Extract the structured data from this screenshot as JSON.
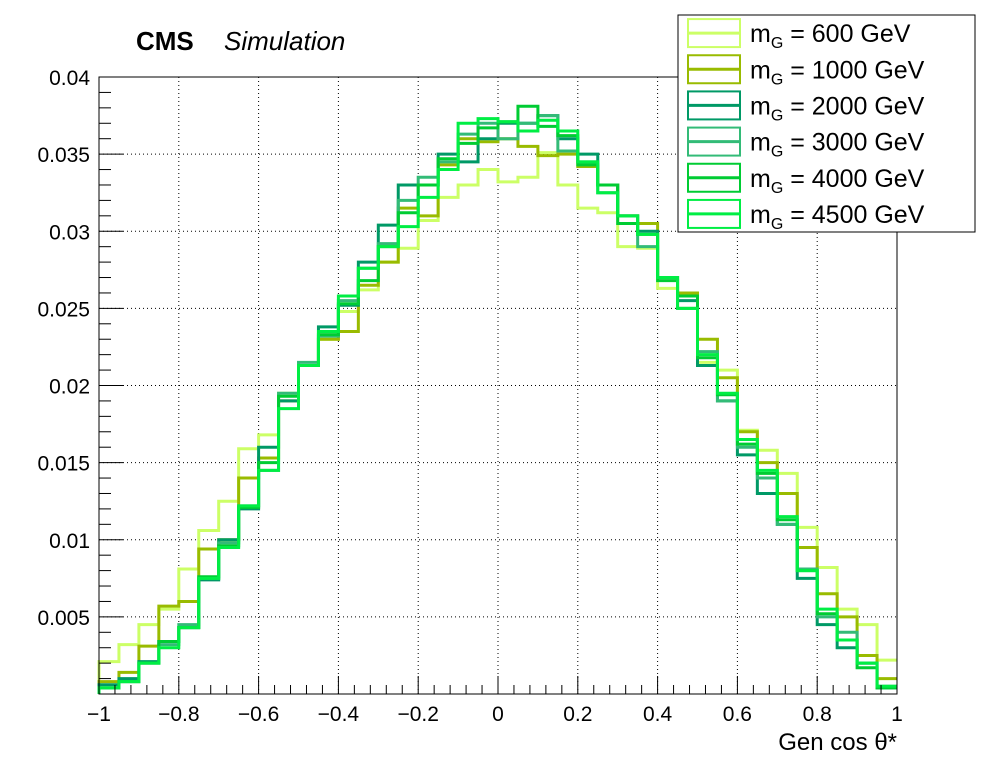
{
  "header": {
    "experiment": "CMS",
    "qualifier": "Simulation"
  },
  "chart_data": {
    "type": "line",
    "style": "step-histogram",
    "xlabel": "Gen cos θ*",
    "ylabel": "",
    "xlim": [
      -1,
      1
    ],
    "ylim": [
      0,
      0.04
    ],
    "grid": true,
    "legend_position": "top-right",
    "x_ticks": [
      "−1",
      "−0.8",
      "−0.6",
      "−0.4",
      "−0.2",
      "0",
      "0.2",
      "0.4",
      "0.6",
      "0.8",
      "1"
    ],
    "y_ticks": [
      "0.005",
      "0.01",
      "0.015",
      "0.02",
      "0.025",
      "0.03",
      "0.035",
      "0.04"
    ],
    "x_tick_values": [
      -1,
      -0.8,
      -0.6,
      -0.4,
      -0.2,
      0,
      0.2,
      0.4,
      0.6,
      0.8,
      1
    ],
    "y_tick_values": [
      0.005,
      0.01,
      0.015,
      0.02,
      0.025,
      0.03,
      0.035,
      0.04
    ],
    "bin_edges": [
      -1,
      -0.95,
      -0.9,
      -0.85,
      -0.8,
      -0.75,
      -0.7,
      -0.65,
      -0.6,
      -0.55,
      -0.5,
      -0.45,
      -0.4,
      -0.35,
      -0.3,
      -0.25,
      -0.2,
      -0.15,
      -0.1,
      -0.05,
      0,
      0.05,
      0.1,
      0.15,
      0.2,
      0.25,
      0.3,
      0.35,
      0.4,
      0.45,
      0.5,
      0.55,
      0.6,
      0.65,
      0.7,
      0.75,
      0.8,
      0.85,
      0.9,
      0.95,
      1
    ],
    "series": [
      {
        "legend_prefix": "m",
        "legend_sub": "G",
        "legend_suffix": " = 600 GeV",
        "color": "#ccff66",
        "values": [
          0.0021,
          0.0032,
          0.0045,
          0.0055,
          0.0081,
          0.0106,
          0.0125,
          0.0159,
          0.0168,
          0.0195,
          0.0213,
          0.023,
          0.0248,
          0.0262,
          0.028,
          0.0289,
          0.0307,
          0.0322,
          0.033,
          0.034,
          0.0332,
          0.0335,
          0.0351,
          0.033,
          0.0315,
          0.0312,
          0.029,
          0.0289,
          0.0263,
          0.025,
          0.0215,
          0.021,
          0.0171,
          0.0158,
          0.0143,
          0.0108,
          0.0082,
          0.0055,
          0.0045,
          0.0022
        ]
      },
      {
        "legend_prefix": "m",
        "legend_sub": "G",
        "legend_suffix": " = 1000 GeV",
        "color": "#99bb00",
        "values": [
          0.0008,
          0.0014,
          0.0031,
          0.0057,
          0.006,
          0.0094,
          0.01,
          0.014,
          0.0153,
          0.019,
          0.0213,
          0.023,
          0.0235,
          0.0265,
          0.028,
          0.0315,
          0.031,
          0.0343,
          0.036,
          0.0358,
          0.036,
          0.0355,
          0.0349,
          0.035,
          0.0342,
          0.033,
          0.031,
          0.0305,
          0.027,
          0.026,
          0.023,
          0.0205,
          0.017,
          0.015,
          0.013,
          0.0095,
          0.0065,
          0.005,
          0.0025,
          0.001
        ]
      },
      {
        "legend_prefix": "m",
        "legend_sub": "G",
        "legend_suffix": " = 2000 GeV",
        "color": "#009966",
        "values": [
          0.0006,
          0.001,
          0.0021,
          0.0034,
          0.0043,
          0.0074,
          0.01,
          0.012,
          0.016,
          0.019,
          0.0213,
          0.0238,
          0.0252,
          0.028,
          0.0304,
          0.033,
          0.033,
          0.035,
          0.0345,
          0.036,
          0.037,
          0.037,
          0.0375,
          0.036,
          0.035,
          0.033,
          0.031,
          0.03,
          0.027,
          0.0255,
          0.0213,
          0.019,
          0.0155,
          0.013,
          0.011,
          0.0075,
          0.0045,
          0.003,
          0.002,
          0.0004
        ]
      },
      {
        "legend_prefix": "m",
        "legend_sub": "G",
        "legend_suffix": " = 3000 GeV",
        "color": "#33bb77",
        "values": [
          0.0004,
          0.0008,
          0.002,
          0.0032,
          0.0045,
          0.0075,
          0.0098,
          0.0122,
          0.0145,
          0.0195,
          0.0215,
          0.0232,
          0.0255,
          0.0276,
          0.0292,
          0.032,
          0.0335,
          0.0345,
          0.0363,
          0.037,
          0.036,
          0.037,
          0.0375,
          0.0352,
          0.0345,
          0.0325,
          0.031,
          0.029,
          0.027,
          0.025,
          0.0222,
          0.019,
          0.016,
          0.014,
          0.011,
          0.0081,
          0.005,
          0.004,
          0.002,
          0.0005
        ]
      },
      {
        "legend_prefix": "m",
        "legend_sub": "G",
        "legend_suffix": " = 4000 GeV",
        "color": "#00cc33",
        "values": [
          0.0004,
          0.0008,
          0.002,
          0.0034,
          0.0043,
          0.0076,
          0.0096,
          0.0121,
          0.015,
          0.0193,
          0.0213,
          0.0233,
          0.0253,
          0.0268,
          0.029,
          0.0312,
          0.033,
          0.0347,
          0.0357,
          0.0367,
          0.0371,
          0.0381,
          0.0368,
          0.0362,
          0.0343,
          0.033,
          0.0305,
          0.0298,
          0.0268,
          0.0258,
          0.0218,
          0.0194,
          0.0162,
          0.0143,
          0.0113,
          0.008,
          0.0052,
          0.0035,
          0.0017,
          0.0004
        ]
      },
      {
        "legend_prefix": "m",
        "legend_sub": "G",
        "legend_suffix": " = 4500 GeV",
        "color": "#00ee44",
        "values": [
          0.0004,
          0.0008,
          0.002,
          0.003,
          0.0043,
          0.0075,
          0.0095,
          0.0122,
          0.0145,
          0.0185,
          0.0213,
          0.0235,
          0.0258,
          0.0276,
          0.029,
          0.0303,
          0.0322,
          0.034,
          0.037,
          0.0373,
          0.0371,
          0.0365,
          0.0372,
          0.0365,
          0.0345,
          0.0325,
          0.031,
          0.0298,
          0.027,
          0.025,
          0.022,
          0.0195,
          0.0165,
          0.0145,
          0.0115,
          0.008,
          0.0055,
          0.0035,
          0.002,
          0.0005
        ]
      }
    ]
  }
}
